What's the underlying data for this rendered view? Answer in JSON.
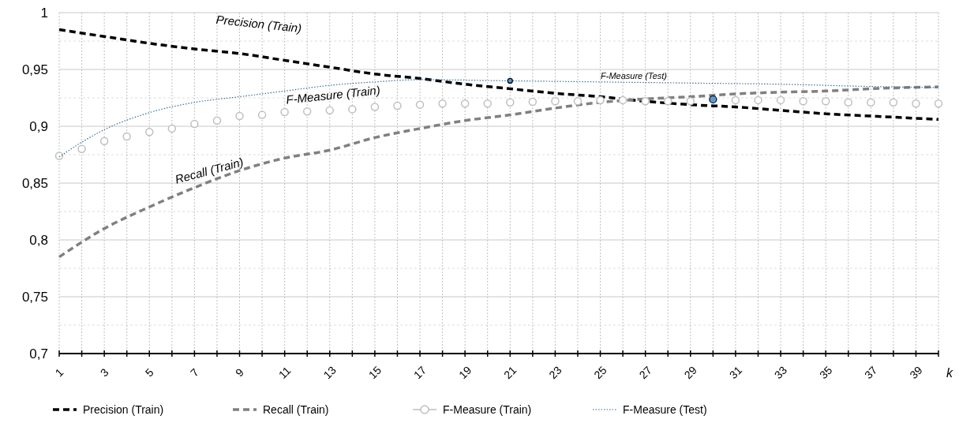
{
  "chart_data": {
    "type": "line",
    "xlabel": "k",
    "xlim": [
      1,
      40
    ],
    "xticks": [
      1,
      {
        "value": 2,
        "label": null
      },
      3,
      {
        "value": 4,
        "label": null
      },
      5,
      {
        "value": 6,
        "label": null
      },
      7,
      {
        "value": 8,
        "label": null
      },
      9,
      {
        "value": 10,
        "label": null
      },
      11,
      {
        "value": 12,
        "label": null
      },
      13,
      {
        "value": 14,
        "label": null
      },
      15,
      {
        "value": 16,
        "label": null
      },
      17,
      {
        "value": 18,
        "label": null
      },
      19,
      {
        "value": 20,
        "label": null
      },
      21,
      {
        "value": 22,
        "label": null
      },
      23,
      {
        "value": 24,
        "label": null
      },
      25,
      {
        "value": 26,
        "label": null
      },
      27,
      {
        "value": 28,
        "label": null
      },
      29,
      {
        "value": 30,
        "label": null
      },
      31,
      {
        "value": 32,
        "label": null
      },
      33,
      {
        "value": 34,
        "label": null
      },
      35,
      {
        "value": 36,
        "label": null
      },
      37,
      {
        "value": 38,
        "label": null
      },
      39,
      {
        "value": 40,
        "label": null
      }
    ],
    "ylim": [
      0.7,
      1
    ],
    "yticks": [
      {
        "value": 0.7,
        "label": "0,7"
      },
      {
        "value": 0.725,
        "label": null
      },
      {
        "value": 0.75,
        "label": "0,75"
      },
      {
        "value": 0.775,
        "label": null
      },
      {
        "value": 0.8,
        "label": "0,8"
      },
      {
        "value": 0.825,
        "label": null
      },
      {
        "value": 0.85,
        "label": "0,85"
      },
      {
        "value": 0.875,
        "label": null
      },
      {
        "value": 0.9,
        "label": "0,9"
      },
      {
        "value": 0.925,
        "label": null
      },
      {
        "value": 0.95,
        "label": "0,95"
      },
      {
        "value": 0.975,
        "label": null
      },
      {
        "value": 1,
        "label": "1"
      }
    ],
    "grid": true,
    "legend": "bottom",
    "series": [
      {
        "name": "Precision (Train)",
        "line_style": "dashed",
        "color": "#000000",
        "x": [
          1,
          3,
          5,
          7,
          9,
          11,
          13,
          15,
          17,
          19,
          21,
          23,
          25,
          27,
          29,
          31,
          33,
          35,
          37,
          40
        ],
        "values": [
          0.985,
          0.979,
          0.973,
          0.968,
          0.964,
          0.958,
          0.952,
          0.946,
          0.942,
          0.937,
          0.933,
          0.929,
          0.926,
          0.922,
          0.919,
          0.917,
          0.914,
          0.911,
          0.909,
          0.906
        ]
      },
      {
        "name": "Recall (Train)",
        "line_style": "dashed",
        "color": "#808080",
        "x": [
          1,
          3,
          5,
          7,
          9,
          11,
          13,
          15,
          17,
          19,
          21,
          23,
          25,
          27,
          29,
          31,
          33,
          35,
          37,
          40
        ],
        "values": [
          0.785,
          0.81,
          0.829,
          0.846,
          0.861,
          0.872,
          0.879,
          0.89,
          0.898,
          0.905,
          0.91,
          0.916,
          0.921,
          0.924,
          0.926,
          0.9285,
          0.93,
          0.931,
          0.933,
          0.9347
        ]
      },
      {
        "name": "F-Measure (Train)",
        "type": "scatter",
        "marker": "circle",
        "color": "#bfbfbf",
        "x": [
          1,
          2,
          3,
          4,
          5,
          6,
          7,
          8,
          9,
          10,
          11,
          12,
          13,
          14,
          15,
          16,
          17,
          18,
          19,
          20,
          21,
          22,
          23,
          24,
          25,
          26,
          27,
          28,
          29,
          30,
          31,
          32,
          33,
          34,
          35,
          36,
          37,
          38,
          39,
          40
        ],
        "values": [
          0.874,
          0.88,
          0.887,
          0.891,
          0.895,
          0.898,
          0.902,
          0.905,
          0.909,
          0.91,
          0.9125,
          0.913,
          0.914,
          0.915,
          0.917,
          0.918,
          0.919,
          0.92,
          0.92,
          0.92,
          0.921,
          0.9215,
          0.922,
          0.922,
          0.923,
          0.923,
          0.922,
          0.922,
          0.922,
          null,
          0.923,
          0.923,
          0.923,
          0.922,
          0.922,
          0.921,
          0.921,
          0.921,
          0.92,
          0.92
        ]
      },
      {
        "name": "F-Measure (Test)",
        "line_style": "dotted",
        "color": "#31719e",
        "x": [
          1,
          2,
          3,
          5,
          7,
          9,
          11,
          13,
          15,
          17,
          21,
          25,
          29,
          33,
          37,
          40
        ],
        "values": [
          0.873,
          0.886,
          0.897,
          0.912,
          0.921,
          0.926,
          0.931,
          0.936,
          0.939,
          0.941,
          0.94,
          0.939,
          0.938,
          0.937,
          0.935,
          0.934
        ]
      },
      {
        "type": "scatter",
        "marker": "circle",
        "color": "#5b9bd5",
        "x": [
          21,
          30
        ],
        "values": [
          0.94,
          0.9236
        ]
      }
    ],
    "annotations": [
      "Precision (Train)",
      "F-Measure (Train)",
      "Recall (Train)",
      "F-Measure (Test)"
    ]
  }
}
